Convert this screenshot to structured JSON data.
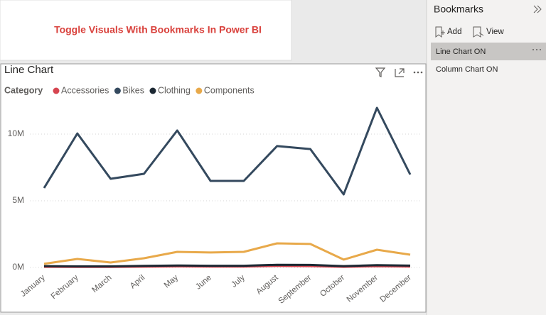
{
  "header": {
    "title": "Toggle Visuals With Bookmarks In Power BI"
  },
  "bookmarks_pane": {
    "title": "Bookmarks",
    "actions": [
      "Add",
      "View"
    ],
    "items": [
      "Line Chart ON",
      "Column Chart ON"
    ]
  },
  "chart_data": {
    "type": "line",
    "title": "Line Chart",
    "legend_title": "Category",
    "categories": [
      "January",
      "February",
      "March",
      "April",
      "May",
      "June",
      "July",
      "August",
      "September",
      "October",
      "November",
      "December"
    ],
    "series": [
      {
        "name": "Accessories",
        "color": "#d64550",
        "values": [
          50000,
          40000,
          40000,
          60000,
          80000,
          70000,
          70000,
          110000,
          100000,
          50000,
          90000,
          70000
        ]
      },
      {
        "name": "Bikes",
        "color": "#34495e",
        "values": [
          5960000,
          10050000,
          6650000,
          7020000,
          10270000,
          6490000,
          6490000,
          9100000,
          8880000,
          5480000,
          11970000,
          6970000
        ]
      },
      {
        "name": "Clothing",
        "color": "#1c2833",
        "values": [
          100000,
          80000,
          80000,
          120000,
          150000,
          130000,
          130000,
          200000,
          190000,
          100000,
          170000,
          140000
        ]
      },
      {
        "name": "Components",
        "color": "#e8a94a",
        "values": [
          270000,
          640000,
          370000,
          690000,
          1170000,
          1120000,
          1170000,
          1810000,
          1760000,
          590000,
          1330000,
          960000
        ]
      }
    ],
    "ylim": [
      0,
      12500000
    ],
    "yticks": [
      {
        "value": 0,
        "label": "0M"
      },
      {
        "value": 5000000,
        "label": "5M"
      },
      {
        "value": 10000000,
        "label": "10M"
      }
    ],
    "grid": true
  }
}
